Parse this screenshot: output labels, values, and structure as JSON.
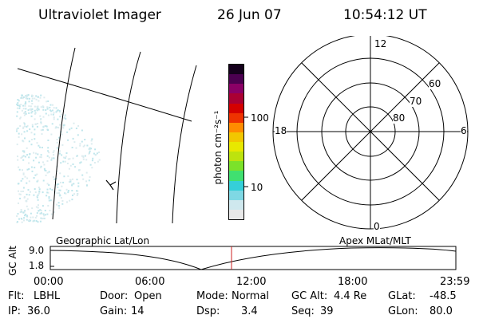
{
  "header": {
    "title": "Ultraviolet Imager",
    "date": "26 Jun 07",
    "time": "10:54:12 UT"
  },
  "geo_panel": {
    "label": "Geographic Lat/Lon"
  },
  "colorbar": {
    "unit_label": "photon cm⁻²s⁻¹",
    "ticks": [
      "100",
      "10"
    ],
    "scale": "log",
    "colors": [
      "#e8e8e8",
      "#cfe8ee",
      "#7fd8e4",
      "#35cfd8",
      "#40e070",
      "#7be22a",
      "#bde30e",
      "#e8e800",
      "#f2c700",
      "#ff8c00",
      "#ee3300",
      "#d40000",
      "#aa0033",
      "#8a0066",
      "#4b0050",
      "#14001c"
    ]
  },
  "polar_panel": {
    "label": "Apex MLat/MLT",
    "mlt_labels": {
      "top": "12",
      "right": "6",
      "bottom": "0",
      "left": "18"
    },
    "lat_labels": [
      "60",
      "70",
      "80"
    ]
  },
  "altitude_plot": {
    "ylabel": "GC Alt",
    "y_ticks": [
      "9.0",
      "1.8"
    ],
    "x_ticks": [
      "00:00",
      "06:00",
      "12:00",
      "18:00",
      "23:59"
    ],
    "marker_color": "#cc2222"
  },
  "info": {
    "row1": [
      {
        "label": "Flt:",
        "value": "LBHL"
      },
      {
        "label": "Door:",
        "value": "Open"
      },
      {
        "label": "Mode:",
        "value": "Normal"
      },
      {
        "label": "GC Alt:",
        "value": "4.4 Re"
      },
      {
        "label": "GLat:",
        "value": "-48.5"
      }
    ],
    "row2": [
      {
        "label": "IP:",
        "value": "36.0"
      },
      {
        "label": "Gain:",
        "value": "14"
      },
      {
        "label": "Dsp:",
        "value": "3.4"
      },
      {
        "label": "Seq:",
        "value": "39"
      },
      {
        "label": "GLon:",
        "value": "80.0"
      }
    ]
  }
}
